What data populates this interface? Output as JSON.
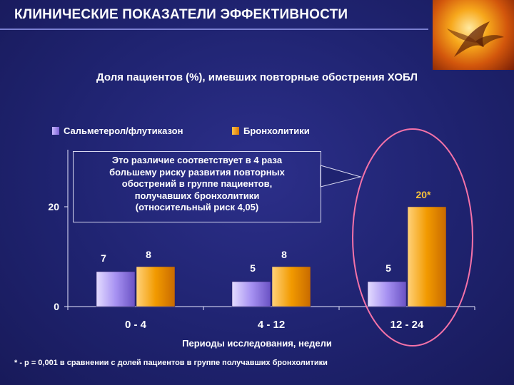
{
  "header": {
    "title": "КЛИНИЧЕСКИЕ ПОКАЗАТЕЛИ ЭФФЕКТИВНОСТИ",
    "subtitle": "Доля пациентов (%), имевших повторные обострения ХОБЛ"
  },
  "annotation": {
    "lines": [
      "Это различие соответствует в 4 раза",
      "большему риску развития повторных",
      "обострений в группе пациентов,",
      "получавших бронхолитики",
      "(относительный риск 4,05)"
    ]
  },
  "footnote": "* - р = 0,001 в сравнении с долей пациентов в группе получавших бронхолитики",
  "colors": {
    "background": "#1f2370",
    "series1": "#9b86f0",
    "series2": "#f29a00",
    "highlight_ellipse": "#f06aa0",
    "text": "#ffffff"
  },
  "chart_data": {
    "type": "bar",
    "categories": [
      "0 - 4",
      "4 - 12",
      "12 - 24"
    ],
    "series": [
      {
        "name": "Сальметерол/флутиказон",
        "values": [
          7,
          5,
          5
        ],
        "labels": [
          "7",
          "5",
          "5"
        ]
      },
      {
        "name": "Бронхолитики",
        "values": [
          8,
          8,
          20
        ],
        "labels": [
          "8",
          "8",
          "20*"
        ]
      }
    ],
    "xlabel": "Периоды исследования, недели",
    "ylabel": "",
    "yticks": [
      0,
      20
    ],
    "ylim": [
      0,
      20
    ],
    "grid": false,
    "legend": "top"
  }
}
